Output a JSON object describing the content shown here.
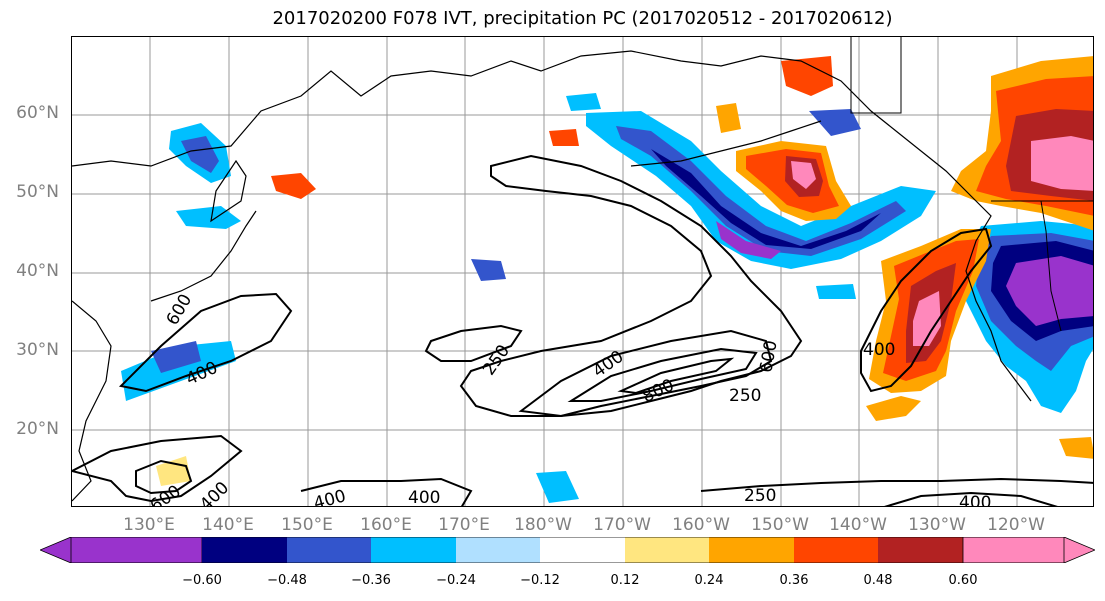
{
  "title": "2017020200 F078 IVT, precipitation PC (2017020512 - 2017020612)",
  "lat_labels": [
    "60°N",
    "50°N",
    "40°N",
    "30°N",
    "20°N"
  ],
  "lon_labels": [
    "130°E",
    "140°E",
    "150°E",
    "160°E",
    "170°E",
    "180°W",
    "170°W",
    "160°W",
    "150°W",
    "140°W",
    "130°W",
    "120°W"
  ],
  "ivt_contour_labels": [
    "250",
    "400",
    "600",
    "800",
    "600",
    "400",
    "250",
    "400",
    "400",
    "600",
    "400",
    "250",
    "400",
    "400"
  ],
  "colorbar": {
    "ticks": [
      "−0.60",
      "−0.48",
      "−0.36",
      "−0.24",
      "−0.12",
      "0.12",
      "0.24",
      "0.36",
      "0.48",
      "0.60"
    ],
    "colors": [
      "#9933cc",
      "#000080",
      "#3355cc",
      "#00bfff",
      "#b0e0ff",
      "#ffffff",
      "#ffe680",
      "#ffa500",
      "#ff4500",
      "#b22222",
      "#ff88bb"
    ]
  },
  "colors": {
    "grid": "#999999",
    "axis_label": "#808080"
  }
}
